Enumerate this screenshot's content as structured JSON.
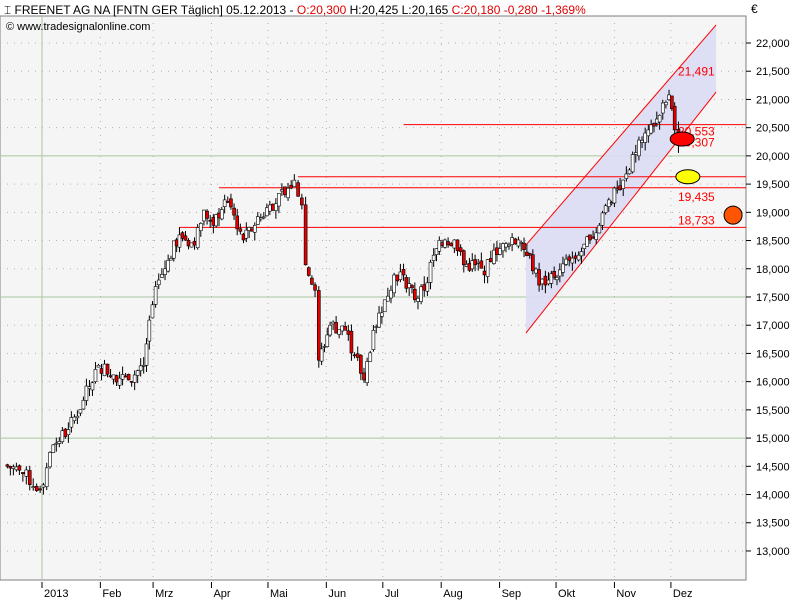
{
  "header": {
    "symbol_icon": "bar-symbol-icon",
    "title": "FREENET AG NA [FNTN GER  Täglich] 05.12.2013 - ",
    "open": "O:20,300",
    "high_low": " H:20,425 L:20,165 ",
    "close_change": "C:20,180 -0,280 -1,369%",
    "source": "© www.tradesignalonline.com",
    "currency": "€"
  },
  "colors": {
    "background": "#f5f5f5",
    "grid_major": "#a8c8a0",
    "candle_up": "#ffffff",
    "candle_down": "#e00000",
    "levels": "#ff0000",
    "channel_fill": "#dcdcf4"
  },
  "chart_data": {
    "type": "candlestick",
    "title": "FREENET AG NA [FNTN GER  Täglich]",
    "y_ticks": [
      "13,000",
      "13,500",
      "14,000",
      "14,500",
      "15,000",
      "15,500",
      "16,000",
      "16,500",
      "17,000",
      "17,500",
      "18,000",
      "18,500",
      "19,000",
      "19,500",
      "20,000",
      "20,500",
      "21,000",
      "21,500",
      "22,000"
    ],
    "ylim": [
      12600,
      22600
    ],
    "x_ticks": [
      {
        "label": "2013",
        "date": "2013-01-01"
      },
      {
        "label": "Feb",
        "date": "2013-02-01"
      },
      {
        "label": "Mrz",
        "date": "2013-03-01"
      },
      {
        "label": "Apr",
        "date": "2013-04-01"
      },
      {
        "label": "Mai",
        "date": "2013-05-01"
      },
      {
        "label": "Jun",
        "date": "2013-06-01"
      },
      {
        "label": "Jul",
        "date": "2013-07-01"
      },
      {
        "label": "Aug",
        "date": "2013-08-01"
      },
      {
        "label": "Sep",
        "date": "2013-09-01"
      },
      {
        "label": "Okt",
        "date": "2013-10-01"
      },
      {
        "label": "Nov",
        "date": "2013-11-01"
      },
      {
        "label": "Dez",
        "date": "2013-12-01"
      }
    ],
    "xlim": [
      "2012-12-10",
      "2014-01-10"
    ],
    "grid": true,
    "closes": [
      [
        "2012-12-12",
        14520
      ],
      [
        "2012-12-20",
        14430
      ],
      [
        "2012-12-31",
        14080
      ],
      [
        "2013-01-07",
        14880
      ],
      [
        "2013-01-15",
        15150
      ],
      [
        "2013-01-23",
        15670
      ],
      [
        "2013-01-31",
        16290
      ],
      [
        "2013-02-08",
        16120
      ],
      [
        "2013-02-16",
        16030
      ],
      [
        "2013-02-24",
        16290
      ],
      [
        "2013-02-27",
        17090
      ],
      [
        "2013-03-04",
        17800
      ],
      [
        "2013-03-09",
        18150
      ],
      [
        "2013-03-15",
        18600
      ],
      [
        "2013-03-23",
        18420
      ],
      [
        "2013-03-28",
        19040
      ],
      [
        "2013-04-02",
        18770
      ],
      [
        "2013-04-08",
        19220
      ],
      [
        "2013-04-13",
        18950
      ],
      [
        "2013-04-18",
        18510
      ],
      [
        "2013-04-24",
        18770
      ],
      [
        "2013-05-02",
        19130
      ],
      [
        "2013-05-10",
        19310
      ],
      [
        "2013-05-15",
        19570
      ],
      [
        "2013-05-19",
        19130
      ],
      [
        "2013-05-21",
        18070
      ],
      [
        "2013-05-26",
        17620
      ],
      [
        "2013-05-28",
        16380
      ],
      [
        "2013-06-03",
        17000
      ],
      [
        "2013-06-11",
        16910
      ],
      [
        "2013-06-16",
        16470
      ],
      [
        "2013-06-21",
        16030
      ],
      [
        "2013-06-26",
        16910
      ],
      [
        "2013-07-02",
        17450
      ],
      [
        "2013-07-07",
        17890
      ],
      [
        "2013-07-12",
        17890
      ],
      [
        "2013-07-18",
        17450
      ],
      [
        "2013-07-23",
        17620
      ],
      [
        "2013-07-28",
        18240
      ],
      [
        "2013-08-03",
        18510
      ],
      [
        "2013-08-08",
        18510
      ],
      [
        "2013-08-13",
        18070
      ],
      [
        "2013-08-19",
        18070
      ],
      [
        "2013-08-24",
        17890
      ],
      [
        "2013-08-29",
        18330
      ],
      [
        "2013-09-06",
        18420
      ],
      [
        "2013-09-11",
        18510
      ],
      [
        "2013-09-17",
        18240
      ],
      [
        "2013-09-22",
        17710
      ],
      [
        "2013-09-27",
        17800
      ],
      [
        "2013-10-03",
        17980
      ],
      [
        "2013-10-08",
        18150
      ],
      [
        "2013-10-13",
        18240
      ],
      [
        "2013-10-19",
        18510
      ],
      [
        "2013-10-24",
        18770
      ],
      [
        "2013-10-29",
        19220
      ],
      [
        "2013-11-04",
        19400
      ],
      [
        "2013-11-09",
        19750
      ],
      [
        "2013-11-14",
        20280
      ],
      [
        "2013-11-19",
        20460
      ],
      [
        "2013-11-25",
        20720
      ],
      [
        "2013-11-30",
        21080
      ],
      [
        "2013-12-03",
        20460
      ],
      [
        "2013-12-05",
        20180
      ]
    ],
    "channel": {
      "start": "2013-09-15",
      "end": "2013-12-25",
      "upper": [
        18420,
        22320
      ],
      "lower": [
        16860,
        21130
      ]
    },
    "levels": [
      {
        "value": 20553,
        "label": "20,553",
        "from": "2013-07-12"
      },
      {
        "value": 19630,
        "label": "",
        "from": "2013-05-17"
      },
      {
        "value": 19435,
        "label": "19,435",
        "from": "2013-04-05"
      },
      {
        "value": 18733,
        "label": "18,733",
        "from": "2013-03-15"
      }
    ],
    "annotations": [
      {
        "label": "21,491",
        "value": 21491
      },
      {
        "label": "20,307",
        "value": 20307
      }
    ],
    "markers": [
      {
        "shape": "ellipse",
        "color": "#ff0000",
        "value": 20300,
        "date": "2013-12-07"
      },
      {
        "shape": "ellipse",
        "color": "#ffff00",
        "value": 19630,
        "date": "2013-12-10"
      },
      {
        "shape": "circle",
        "color": "#ff5500",
        "value": 18950,
        "date": "2014-01-03"
      }
    ]
  }
}
